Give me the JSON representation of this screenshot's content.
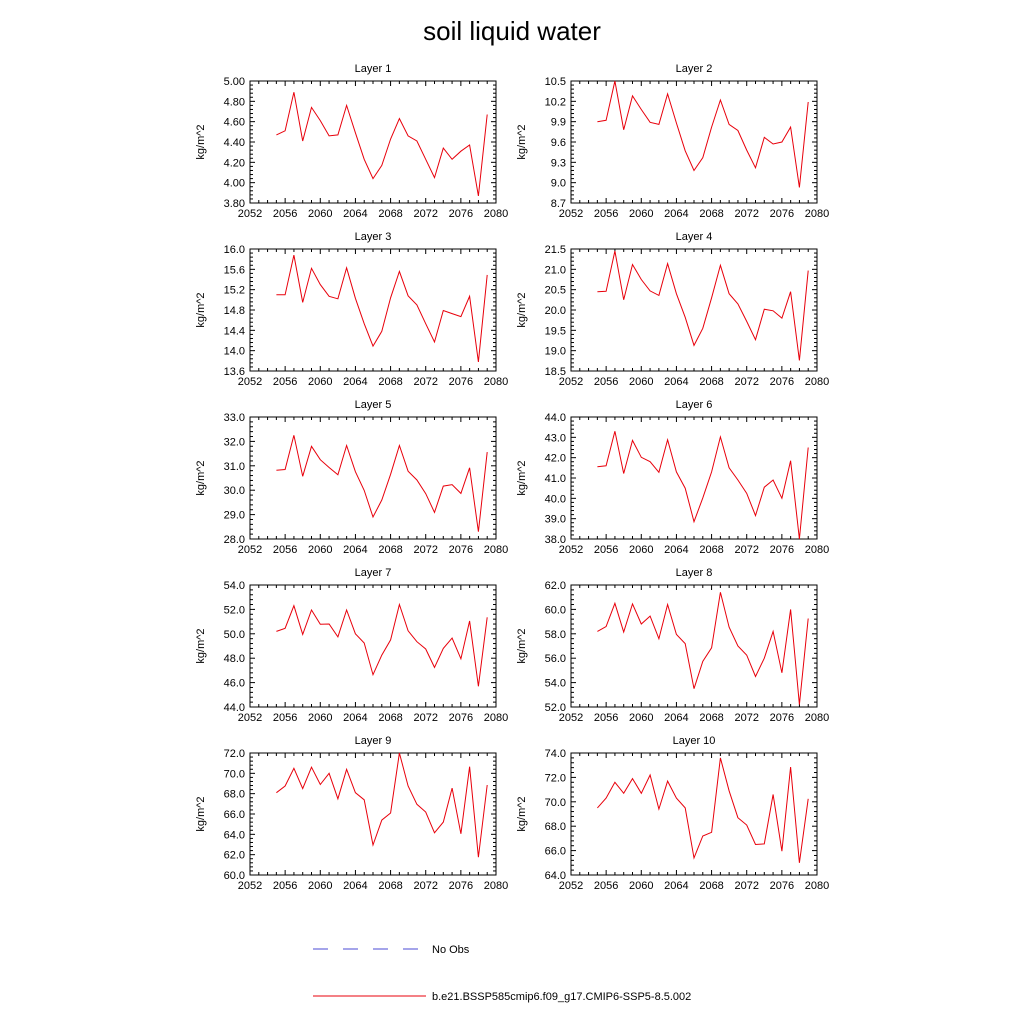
{
  "title": "soil liquid water",
  "colors": {
    "model": "#e8000b",
    "obs": "#4b4bd6",
    "axis": "#000000",
    "background": "#ffffff"
  },
  "legend": {
    "placement": "bottom",
    "entries": [
      {
        "label": "No Obs",
        "style": "dashed",
        "color": "#4b4bd6"
      },
      {
        "label": "b.e21.BSSP585cmip6.f09_g17.CMIP6-SSP5-8.5.002",
        "style": "solid",
        "color": "#e8000b"
      }
    ]
  },
  "chart_data": [
    {
      "type": "line",
      "title": "Layer 1",
      "ylabel": "kg/m^2",
      "xlim": [
        2052,
        2080
      ],
      "ylim": [
        3.8,
        5.0
      ],
      "xticks": [
        "2052",
        "2056",
        "2060",
        "2064",
        "2068",
        "2072",
        "2076",
        "2080"
      ],
      "yticks": [
        "3.80",
        "4.00",
        "4.20",
        "4.40",
        "4.60",
        "4.80",
        "5.00"
      ],
      "x": [
        2055,
        2056,
        2057,
        2058,
        2059,
        2060,
        2061,
        2062,
        2063,
        2064,
        2065,
        2066,
        2067,
        2068,
        2069,
        2070,
        2071,
        2072,
        2073,
        2074,
        2075,
        2076,
        2077,
        2078,
        2079
      ],
      "series": [
        {
          "name": "b.e21.BSSP585cmip6.f09_g17.CMIP6-SSP5-8.5.002",
          "values": [
            4.47,
            4.51,
            4.89,
            4.41,
            4.74,
            4.61,
            4.46,
            4.47,
            4.76,
            4.49,
            4.23,
            4.04,
            4.17,
            4.43,
            4.63,
            4.46,
            4.41,
            4.23,
            4.05,
            4.34,
            4.23,
            4.31,
            4.37,
            3.87,
            4.67
          ]
        }
      ]
    },
    {
      "type": "line",
      "title": "Layer 2",
      "ylabel": "kg/m^2",
      "xlim": [
        2052,
        2080
      ],
      "ylim": [
        8.7,
        10.5
      ],
      "xticks": [
        "2052",
        "2056",
        "2060",
        "2064",
        "2068",
        "2072",
        "2076",
        "2080"
      ],
      "yticks": [
        "8.7",
        "9.0",
        "9.3",
        "9.6",
        "9.9",
        "10.2",
        "10.5"
      ],
      "x": [
        2055,
        2056,
        2057,
        2058,
        2059,
        2060,
        2061,
        2062,
        2063,
        2064,
        2065,
        2066,
        2067,
        2068,
        2069,
        2070,
        2071,
        2072,
        2073,
        2074,
        2075,
        2076,
        2077,
        2078,
        2079
      ],
      "series": [
        {
          "name": "b.e21.BSSP585cmip6.f09_g17.CMIP6-SSP5-8.5.002",
          "values": [
            9.9,
            9.92,
            10.5,
            9.78,
            10.28,
            10.08,
            9.89,
            9.86,
            10.31,
            9.88,
            9.47,
            9.18,
            9.37,
            9.82,
            10.22,
            9.86,
            9.77,
            9.48,
            9.22,
            9.67,
            9.57,
            9.6,
            9.82,
            8.93,
            10.19
          ]
        }
      ]
    },
    {
      "type": "line",
      "title": "Layer 3",
      "ylabel": "kg/m^2",
      "xlim": [
        2052,
        2080
      ],
      "ylim": [
        13.6,
        16.0
      ],
      "xticks": [
        "2052",
        "2056",
        "2060",
        "2064",
        "2068",
        "2072",
        "2076",
        "2080"
      ],
      "yticks": [
        "13.6",
        "14.0",
        "14.4",
        "14.8",
        "15.2",
        "15.6",
        "16.0"
      ],
      "x": [
        2055,
        2056,
        2057,
        2058,
        2059,
        2060,
        2061,
        2062,
        2063,
        2064,
        2065,
        2066,
        2067,
        2068,
        2069,
        2070,
        2071,
        2072,
        2073,
        2074,
        2075,
        2076,
        2077,
        2078,
        2079
      ],
      "series": [
        {
          "name": "b.e21.BSSP585cmip6.f09_g17.CMIP6-SSP5-8.5.002",
          "values": [
            15.1,
            15.1,
            15.88,
            14.95,
            15.62,
            15.3,
            15.07,
            15.02,
            15.63,
            15.03,
            14.53,
            14.09,
            14.38,
            15.04,
            15.56,
            15.08,
            14.9,
            14.53,
            14.17,
            14.79,
            14.73,
            14.67,
            15.07,
            13.78,
            15.49
          ]
        }
      ]
    },
    {
      "type": "line",
      "title": "Layer 4",
      "ylabel": "kg/m^2",
      "xlim": [
        2052,
        2080
      ],
      "ylim": [
        18.5,
        21.5
      ],
      "xticks": [
        "2052",
        "2056",
        "2060",
        "2064",
        "2068",
        "2072",
        "2076",
        "2080"
      ],
      "yticks": [
        "18.5",
        "19.0",
        "19.5",
        "20.0",
        "20.5",
        "21.0",
        "21.5"
      ],
      "x": [
        2055,
        2056,
        2057,
        2058,
        2059,
        2060,
        2061,
        2062,
        2063,
        2064,
        2065,
        2066,
        2067,
        2068,
        2069,
        2070,
        2071,
        2072,
        2073,
        2074,
        2075,
        2076,
        2077,
        2078,
        2079
      ],
      "series": [
        {
          "name": "b.e21.BSSP585cmip6.f09_g17.CMIP6-SSP5-8.5.002",
          "values": [
            20.45,
            20.46,
            21.45,
            20.25,
            21.12,
            20.75,
            20.47,
            20.36,
            21.14,
            20.4,
            19.82,
            19.13,
            19.55,
            20.3,
            21.1,
            20.4,
            20.15,
            19.72,
            19.27,
            20.02,
            19.98,
            19.8,
            20.45,
            18.76,
            20.97
          ]
        }
      ]
    },
    {
      "type": "line",
      "title": "Layer 5",
      "ylabel": "kg/m^2",
      "xlim": [
        2052,
        2080
      ],
      "ylim": [
        28.0,
        33.0
      ],
      "xticks": [
        "2052",
        "2056",
        "2060",
        "2064",
        "2068",
        "2072",
        "2076",
        "2080"
      ],
      "yticks": [
        "28.0",
        "29.0",
        "30.0",
        "31.0",
        "32.0",
        "33.0"
      ],
      "x": [
        2055,
        2056,
        2057,
        2058,
        2059,
        2060,
        2061,
        2062,
        2063,
        2064,
        2065,
        2066,
        2067,
        2068,
        2069,
        2070,
        2071,
        2072,
        2073,
        2074,
        2075,
        2076,
        2077,
        2078,
        2079
      ],
      "series": [
        {
          "name": "b.e21.BSSP585cmip6.f09_g17.CMIP6-SSP5-8.5.002",
          "values": [
            30.82,
            30.85,
            32.25,
            30.57,
            31.8,
            31.25,
            30.93,
            30.63,
            31.83,
            30.76,
            29.99,
            28.9,
            29.6,
            30.65,
            31.83,
            30.78,
            30.42,
            29.86,
            29.09,
            30.17,
            30.23,
            29.87,
            30.92,
            28.3,
            31.56
          ]
        }
      ]
    },
    {
      "type": "line",
      "title": "Layer 6",
      "ylabel": "kg/m^2",
      "xlim": [
        2052,
        2080
      ],
      "ylim": [
        38.0,
        44.0
      ],
      "xticks": [
        "2052",
        "2056",
        "2060",
        "2064",
        "2068",
        "2072",
        "2076",
        "2080"
      ],
      "yticks": [
        "38.0",
        "39.0",
        "40.0",
        "41.0",
        "42.0",
        "43.0",
        "44.0"
      ],
      "x": [
        2055,
        2056,
        2057,
        2058,
        2059,
        2060,
        2061,
        2062,
        2063,
        2064,
        2065,
        2066,
        2067,
        2068,
        2069,
        2070,
        2071,
        2072,
        2073,
        2074,
        2075,
        2076,
        2077,
        2078,
        2079
      ],
      "series": [
        {
          "name": "b.e21.BSSP585cmip6.f09_g17.CMIP6-SSP5-8.5.002",
          "values": [
            41.55,
            41.6,
            43.3,
            41.22,
            42.85,
            42.02,
            41.8,
            41.28,
            42.88,
            41.3,
            40.5,
            38.85,
            40.02,
            41.3,
            43.02,
            41.5,
            40.9,
            40.25,
            39.15,
            40.55,
            40.9,
            40.0,
            41.85,
            38.0,
            42.5
          ]
        }
      ]
    },
    {
      "type": "line",
      "title": "Layer 7",
      "ylabel": "kg/m^2",
      "xlim": [
        2052,
        2080
      ],
      "ylim": [
        44.0,
        54.0
      ],
      "xticks": [
        "2052",
        "2056",
        "2060",
        "2064",
        "2068",
        "2072",
        "2076",
        "2080"
      ],
      "yticks": [
        "44.0",
        "46.0",
        "48.0",
        "50.0",
        "52.0",
        "54.0"
      ],
      "x": [
        2055,
        2056,
        2057,
        2058,
        2059,
        2060,
        2061,
        2062,
        2063,
        2064,
        2065,
        2066,
        2067,
        2068,
        2069,
        2070,
        2071,
        2072,
        2073,
        2074,
        2075,
        2076,
        2077,
        2078,
        2079
      ],
      "series": [
        {
          "name": "b.e21.BSSP585cmip6.f09_g17.CMIP6-SSP5-8.5.002",
          "values": [
            50.2,
            50.45,
            52.3,
            49.95,
            51.95,
            50.78,
            50.8,
            49.75,
            51.95,
            50.0,
            49.25,
            46.65,
            48.25,
            49.5,
            52.4,
            50.25,
            49.35,
            48.75,
            47.25,
            48.8,
            49.65,
            47.95,
            51.05,
            45.7,
            51.35
          ]
        }
      ]
    },
    {
      "type": "line",
      "title": "Layer 8",
      "ylabel": "kg/m^2",
      "xlim": [
        2052,
        2080
      ],
      "ylim": [
        52.0,
        62.0
      ],
      "xticks": [
        "2052",
        "2056",
        "2060",
        "2064",
        "2068",
        "2072",
        "2076",
        "2080"
      ],
      "yticks": [
        "52.0",
        "54.0",
        "56.0",
        "58.0",
        "60.0",
        "62.0"
      ],
      "x": [
        2055,
        2056,
        2057,
        2058,
        2059,
        2060,
        2061,
        2062,
        2063,
        2064,
        2065,
        2066,
        2067,
        2068,
        2069,
        2070,
        2071,
        2072,
        2073,
        2074,
        2075,
        2076,
        2077,
        2078,
        2079
      ],
      "series": [
        {
          "name": "b.e21.BSSP585cmip6.f09_g17.CMIP6-SSP5-8.5.002",
          "values": [
            58.2,
            58.6,
            60.5,
            58.15,
            60.45,
            58.8,
            59.45,
            57.6,
            60.4,
            57.95,
            57.2,
            53.5,
            55.75,
            56.85,
            61.4,
            58.55,
            57.0,
            56.25,
            54.5,
            56.0,
            58.2,
            54.8,
            60.0,
            52.2,
            59.25
          ]
        }
      ]
    },
    {
      "type": "line",
      "title": "Layer 9",
      "ylabel": "kg/m^2",
      "xlim": [
        2052,
        2080
      ],
      "ylim": [
        60.0,
        72.0
      ],
      "xticks": [
        "2052",
        "2056",
        "2060",
        "2064",
        "2068",
        "2072",
        "2076",
        "2080"
      ],
      "yticks": [
        "60.0",
        "62.0",
        "64.0",
        "66.0",
        "68.0",
        "70.0",
        "72.0"
      ],
      "x": [
        2055,
        2056,
        2057,
        2058,
        2059,
        2060,
        2061,
        2062,
        2063,
        2064,
        2065,
        2066,
        2067,
        2068,
        2069,
        2070,
        2071,
        2072,
        2073,
        2074,
        2075,
        2076,
        2077,
        2078,
        2079
      ],
      "series": [
        {
          "name": "b.e21.BSSP585cmip6.f09_g17.CMIP6-SSP5-8.5.002",
          "values": [
            68.1,
            68.75,
            70.5,
            68.5,
            70.6,
            68.9,
            70.0,
            67.5,
            70.4,
            68.1,
            67.4,
            62.95,
            65.4,
            66.1,
            72.0,
            68.75,
            66.95,
            66.2,
            64.15,
            65.2,
            68.55,
            64.05,
            70.65,
            61.75,
            68.85
          ]
        }
      ]
    },
    {
      "type": "line",
      "title": "Layer 10",
      "ylabel": "kg/m^2",
      "xlim": [
        2052,
        2080
      ],
      "ylim": [
        64.0,
        74.0
      ],
      "xticks": [
        "2052",
        "2056",
        "2060",
        "2064",
        "2068",
        "2072",
        "2076",
        "2080"
      ],
      "yticks": [
        "64.0",
        "66.0",
        "68.0",
        "70.0",
        "72.0",
        "74.0"
      ],
      "x": [
        2055,
        2056,
        2057,
        2058,
        2059,
        2060,
        2061,
        2062,
        2063,
        2064,
        2065,
        2066,
        2067,
        2068,
        2069,
        2070,
        2071,
        2072,
        2073,
        2074,
        2075,
        2076,
        2077,
        2078,
        2079
      ],
      "series": [
        {
          "name": "b.e21.BSSP585cmip6.f09_g17.CMIP6-SSP5-8.5.002",
          "values": [
            69.5,
            70.3,
            71.6,
            70.7,
            71.9,
            70.7,
            72.2,
            69.4,
            71.7,
            70.3,
            69.5,
            65.4,
            67.2,
            67.5,
            73.6,
            70.9,
            68.7,
            68.1,
            66.5,
            66.55,
            70.6,
            65.95,
            72.85,
            65.0,
            70.25
          ]
        }
      ]
    }
  ]
}
